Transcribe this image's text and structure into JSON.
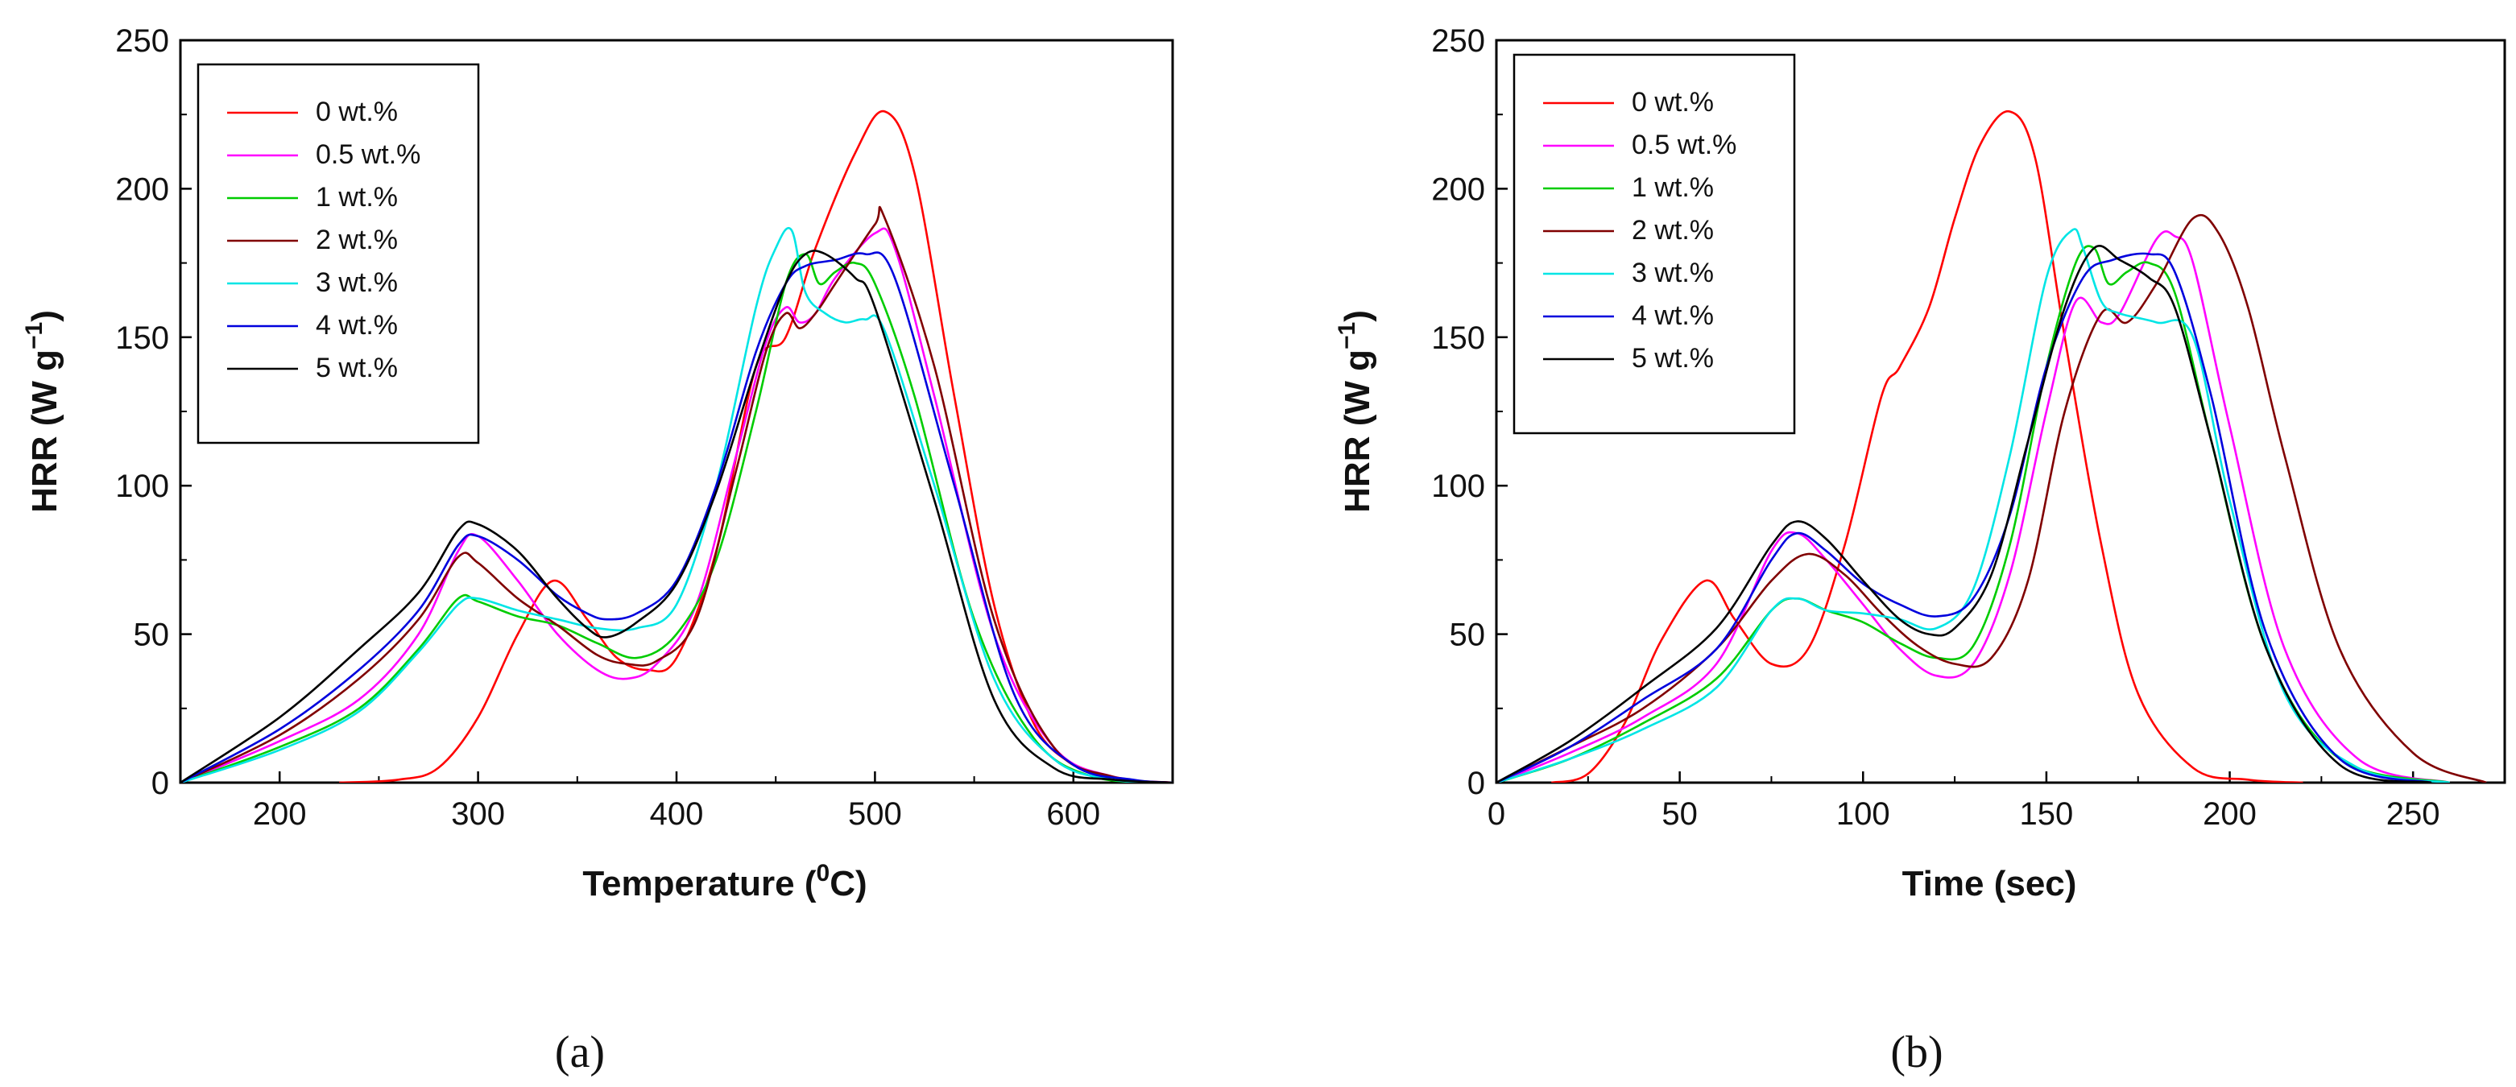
{
  "chart_data": [
    {
      "type": "line",
      "panel_label": "(a)",
      "xlabel": {
        "main": "Temperature (",
        "sup": "0",
        "tail": "C)"
      },
      "ylabel": {
        "main": "HRR (W g",
        "sup": "−1",
        "tail": ")"
      },
      "xlim": [
        150,
        650
      ],
      "ylim": [
        0,
        250
      ],
      "xticks": [
        200,
        300,
        400,
        500,
        600
      ],
      "yticks": [
        0,
        50,
        100,
        150,
        200,
        250
      ],
      "legend_position": "top-left",
      "series": [
        {
          "name": "0 wt.%",
          "color": "#ff0000",
          "x": [
            230,
            260,
            280,
            300,
            320,
            338,
            355,
            370,
            385,
            400,
            420,
            440,
            455,
            470,
            490,
            505,
            520,
            540,
            560,
            580,
            600,
            620,
            640
          ],
          "y": [
            0,
            1,
            5,
            22,
            50,
            68,
            55,
            42,
            38,
            42,
            78,
            140,
            150,
            180,
            212,
            226,
            205,
            130,
            60,
            20,
            6,
            2,
            0
          ]
        },
        {
          "name": "0.5 wt.%",
          "color": "#ff00ff",
          "x": [
            150,
            200,
            240,
            270,
            290,
            300,
            320,
            340,
            360,
            375,
            390,
            410,
            430,
            445,
            455,
            462,
            470,
            480,
            500,
            510,
            530,
            560,
            590,
            620,
            650
          ],
          "y": [
            0,
            14,
            28,
            50,
            78,
            83,
            68,
            50,
            38,
            35,
            40,
            60,
            110,
            148,
            160,
            155,
            158,
            170,
            185,
            180,
            130,
            50,
            12,
            2,
            0
          ]
        },
        {
          "name": "1 wt.%",
          "color": "#00cc00",
          "x": [
            150,
            200,
            240,
            270,
            290,
            300,
            320,
            340,
            360,
            380,
            400,
            420,
            440,
            455,
            465,
            472,
            480,
            490,
            500,
            520,
            550,
            580,
            610,
            650
          ],
          "y": [
            0,
            12,
            25,
            45,
            62,
            61,
            56,
            53,
            47,
            42,
            50,
            75,
            125,
            168,
            178,
            168,
            172,
            175,
            168,
            130,
            55,
            15,
            2,
            0
          ]
        },
        {
          "name": "2 wt.%",
          "color": "#800000",
          "x": [
            150,
            200,
            240,
            270,
            290,
            300,
            320,
            340,
            360,
            375,
            390,
            410,
            430,
            445,
            455,
            462,
            470,
            480,
            500,
            505,
            530,
            560,
            590,
            620,
            650
          ],
          "y": [
            0,
            16,
            35,
            55,
            76,
            74,
            62,
            53,
            43,
            40,
            41,
            55,
            105,
            145,
            158,
            153,
            158,
            168,
            188,
            190,
            140,
            55,
            12,
            2,
            0
          ]
        },
        {
          "name": "3 wt.%",
          "color": "#00e5e5",
          "x": [
            150,
            200,
            240,
            270,
            290,
            300,
            320,
            340,
            360,
            380,
            400,
            420,
            440,
            450,
            458,
            465,
            475,
            485,
            495,
            505,
            530,
            560,
            590,
            620,
            650
          ],
          "y": [
            0,
            11,
            24,
            44,
            60,
            62,
            58,
            55,
            52,
            52,
            60,
            100,
            160,
            180,
            186,
            165,
            158,
            155,
            156,
            152,
            100,
            35,
            8,
            1,
            0
          ]
        },
        {
          "name": "4 wt.%",
          "color": "#0000dd",
          "x": [
            150,
            200,
            240,
            270,
            290,
            300,
            320,
            340,
            355,
            365,
            380,
            400,
            420,
            440,
            455,
            465,
            480,
            495,
            510,
            540,
            570,
            600,
            630,
            650
          ],
          "y": [
            0,
            18,
            38,
            58,
            80,
            83,
            75,
            63,
            57,
            55,
            57,
            68,
            100,
            145,
            168,
            174,
            176,
            178,
            170,
            100,
            30,
            6,
            1,
            0
          ]
        },
        {
          "name": "5 wt.%",
          "color": "#000000",
          "x": [
            150,
            200,
            240,
            270,
            290,
            300,
            320,
            340,
            355,
            365,
            380,
            400,
            420,
            440,
            455,
            465,
            475,
            490,
            500,
            530,
            560,
            590,
            620,
            650
          ],
          "y": [
            0,
            22,
            45,
            64,
            85,
            87,
            78,
            62,
            52,
            49,
            54,
            67,
            98,
            140,
            168,
            178,
            178,
            170,
            160,
            95,
            28,
            5,
            1,
            0
          ]
        }
      ]
    },
    {
      "type": "line",
      "panel_label": "(b)",
      "xlabel": {
        "main": "Time (sec)",
        "sup": "",
        "tail": ""
      },
      "ylabel": {
        "main": "HRR (W g",
        "sup": "−1",
        "tail": ")"
      },
      "xlim": [
        0,
        275
      ],
      "ylim": [
        0,
        250
      ],
      "xticks": [
        0,
        50,
        100,
        150,
        200,
        250
      ],
      "yticks": [
        0,
        50,
        100,
        150,
        200,
        250
      ],
      "legend_position": "top-left",
      "series": [
        {
          "name": "0 wt.%",
          "color": "#ff0000",
          "x": [
            15,
            25,
            35,
            45,
            57,
            65,
            75,
            85,
            95,
            105,
            110,
            118,
            125,
            132,
            140,
            147,
            155,
            165,
            175,
            190,
            205,
            220
          ],
          "y": [
            0,
            3,
            20,
            48,
            68,
            55,
            40,
            45,
            80,
            130,
            140,
            160,
            190,
            215,
            226,
            210,
            150,
            80,
            30,
            5,
            1,
            0
          ]
        },
        {
          "name": "0.5 wt.%",
          "color": "#ff00ff",
          "x": [
            0,
            20,
            40,
            60,
            75,
            82,
            90,
            100,
            110,
            120,
            130,
            140,
            150,
            158,
            165,
            170,
            180,
            185,
            190,
            200,
            215,
            235,
            260
          ],
          "y": [
            0,
            10,
            22,
            40,
            78,
            84,
            75,
            60,
            45,
            36,
            40,
            70,
            125,
            162,
            155,
            158,
            183,
            184,
            175,
            120,
            45,
            8,
            0
          ]
        },
        {
          "name": "1 wt.%",
          "color": "#00cc00",
          "x": [
            0,
            20,
            40,
            60,
            75,
            82,
            90,
            100,
            110,
            120,
            130,
            140,
            150,
            158,
            163,
            167,
            172,
            178,
            185,
            195,
            210,
            230,
            260
          ],
          "y": [
            0,
            8,
            20,
            35,
            58,
            62,
            58,
            54,
            47,
            42,
            46,
            80,
            140,
            175,
            180,
            168,
            172,
            175,
            165,
            115,
            45,
            8,
            0
          ]
        },
        {
          "name": "2 wt.%",
          "color": "#800000",
          "x": [
            0,
            20,
            40,
            60,
            75,
            85,
            95,
            105,
            115,
            125,
            135,
            145,
            155,
            165,
            172,
            180,
            190,
            197,
            205,
            215,
            230,
            250,
            270
          ],
          "y": [
            0,
            12,
            25,
            45,
            68,
            77,
            70,
            57,
            46,
            40,
            42,
            68,
            125,
            158,
            155,
            168,
            190,
            185,
            160,
            110,
            45,
            10,
            0
          ]
        },
        {
          "name": "3 wt.%",
          "color": "#00e5e5",
          "x": [
            0,
            20,
            40,
            60,
            75,
            82,
            90,
            100,
            110,
            120,
            130,
            140,
            150,
            157,
            160,
            165,
            170,
            180,
            190,
            200,
            215,
            235,
            260
          ],
          "y": [
            0,
            8,
            18,
            32,
            58,
            62,
            58,
            57,
            55,
            52,
            65,
            110,
            170,
            186,
            180,
            162,
            158,
            155,
            150,
            95,
            30,
            5,
            0
          ]
        },
        {
          "name": "4 wt.%",
          "color": "#0000dd",
          "x": [
            0,
            20,
            40,
            60,
            75,
            82,
            90,
            100,
            110,
            120,
            130,
            140,
            150,
            160,
            168,
            178,
            185,
            195,
            210,
            230,
            255
          ],
          "y": [
            0,
            12,
            28,
            45,
            75,
            84,
            78,
            67,
            60,
            56,
            62,
            90,
            140,
            170,
            176,
            178,
            172,
            130,
            50,
            8,
            0
          ]
        },
        {
          "name": "5 wt.%",
          "color": "#000000",
          "x": [
            0,
            20,
            40,
            60,
            75,
            82,
            90,
            100,
            110,
            118,
            125,
            135,
            145,
            155,
            163,
            170,
            178,
            185,
            195,
            210,
            230,
            255
          ],
          "y": [
            0,
            14,
            32,
            52,
            80,
            88,
            82,
            68,
            55,
            50,
            52,
            70,
            115,
            160,
            180,
            176,
            170,
            160,
            115,
            45,
            6,
            0
          ]
        }
      ]
    }
  ]
}
